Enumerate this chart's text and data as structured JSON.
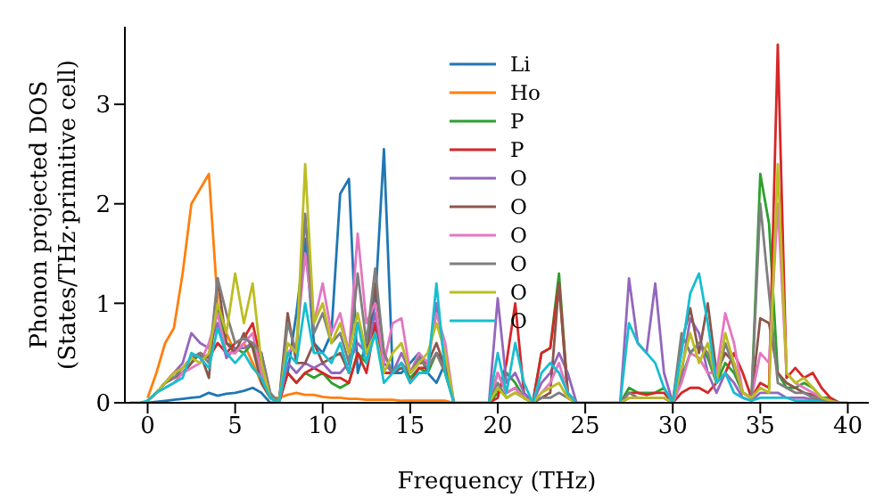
{
  "chart_data": {
    "type": "line",
    "xlabel": "Frequency (THz)",
    "ylabel": "Phonon projected DOS\n(States/THz·primitive cell)",
    "x": [
      -1,
      -0.5,
      0,
      0.5,
      1,
      1.5,
      2,
      2.5,
      3,
      3.5,
      4,
      4.5,
      5,
      5.5,
      6,
      6.5,
      7,
      7.5,
      8,
      8.5,
      9,
      9.5,
      10,
      10.5,
      11,
      11.5,
      12,
      12.5,
      13,
      13.5,
      14,
      14.5,
      15,
      15.5,
      16,
      16.5,
      17,
      17.5,
      18,
      18.5,
      19,
      19.5,
      20,
      20.5,
      21,
      21.5,
      22,
      22.5,
      23,
      23.5,
      24,
      24.5,
      25,
      25.5,
      26,
      26.5,
      27,
      27.5,
      28,
      28.5,
      29,
      29.5,
      30,
      30.5,
      31,
      31.5,
      32,
      32.5,
      33,
      33.5,
      34,
      34.5,
      35,
      35.5,
      36,
      36.5,
      37,
      37.5,
      38,
      38.5,
      39,
      39.5,
      40
    ],
    "series": [
      {
        "name": "Li",
        "color": "#1f77b4",
        "values": [
          null,
          null,
          0,
          0.01,
          0.02,
          0.03,
          0.04,
          0.05,
          0.06,
          0.1,
          0.07,
          0.09,
          0.1,
          0.12,
          0.15,
          0.1,
          0,
          0,
          0.3,
          0.9,
          1.65,
          0.6,
          0.5,
          0.7,
          2.1,
          2.25,
          0.3,
          0.6,
          1.0,
          2.55,
          0.3,
          0.3,
          0.4,
          0.5,
          0.3,
          0.2,
          0.4,
          0,
          null,
          null,
          null,
          null,
          null,
          null,
          null,
          null,
          null,
          null,
          null,
          null,
          null,
          null,
          null,
          null,
          null,
          null,
          null,
          null,
          null,
          null,
          null,
          null,
          null,
          null,
          null,
          null,
          null,
          null,
          null,
          null,
          null,
          null,
          null,
          null,
          null,
          null,
          null,
          null,
          null,
          null,
          null,
          null,
          null
        ]
      },
      {
        "name": "Ho",
        "color": "#ff7f0e",
        "values": [
          null,
          null,
          0.05,
          0.3,
          0.6,
          0.75,
          1.3,
          2.0,
          2.15,
          2.3,
          1.0,
          0.7,
          0.5,
          0.6,
          0.4,
          0.2,
          0.05,
          0.05,
          0.08,
          0.1,
          0.08,
          0.08,
          0.06,
          0.05,
          0.05,
          0.04,
          0.04,
          0.03,
          0.03,
          0.03,
          0.03,
          0.02,
          0.02,
          0.02,
          0.02,
          0.02,
          0.02,
          0,
          null,
          null,
          null,
          null,
          null,
          null,
          null,
          null,
          null,
          null,
          null,
          null,
          null,
          null,
          null,
          null,
          null,
          null,
          null,
          null,
          null,
          null,
          null,
          null,
          null,
          null,
          null,
          null,
          null,
          null,
          null,
          null,
          null,
          null,
          null,
          null,
          null,
          null,
          null,
          null,
          null,
          null,
          null,
          null,
          null
        ]
      },
      {
        "name": "P",
        "color": "#2ca02c",
        "values": [
          null,
          null,
          0.02,
          0.1,
          0.2,
          0.25,
          0.3,
          0.4,
          0.5,
          0.45,
          0.95,
          0.6,
          0.55,
          0.5,
          0.6,
          0.3,
          0.05,
          0,
          0.3,
          0.2,
          0.3,
          0.25,
          0.3,
          0.2,
          0.15,
          0.2,
          0.5,
          0.4,
          0.8,
          0.3,
          0.3,
          0.4,
          0.25,
          0.35,
          0.3,
          0.5,
          0.3,
          0,
          null,
          null,
          null,
          0,
          0.1,
          0.3,
          0.2,
          0.05,
          0,
          0.5,
          0.55,
          1.3,
          0.1,
          0,
          null,
          null,
          null,
          null,
          0,
          0.15,
          0.1,
          0.1,
          0.1,
          0.15,
          0,
          0.25,
          0.5,
          0.6,
          0.45,
          0.2,
          0.4,
          0.3,
          0.1,
          0.05,
          2.3,
          1.8,
          0.3,
          0.15,
          0.15,
          0.2,
          0.15,
          0.05,
          0.05,
          0,
          null
        ]
      },
      {
        "name": "P",
        "color": "#d62728",
        "values": [
          null,
          null,
          null,
          null,
          0.2,
          0.3,
          0.35,
          0.45,
          0.5,
          0.45,
          0.6,
          0.5,
          0.6,
          0.65,
          0.8,
          0.4,
          0.05,
          0,
          0.3,
          0.2,
          0.3,
          0.35,
          0.3,
          0.25,
          0.25,
          0.2,
          0.5,
          0.3,
          0.8,
          0.3,
          0.3,
          0.4,
          0.2,
          0.35,
          0.35,
          0.5,
          0.4,
          0,
          null,
          null,
          null,
          0,
          0.05,
          0.4,
          1.0,
          0.1,
          0,
          0.5,
          0.55,
          1.2,
          0.1,
          0,
          null,
          null,
          null,
          null,
          0,
          0.1,
          0.1,
          0.08,
          0.1,
          0.1,
          0,
          0.1,
          0.15,
          0.15,
          0.1,
          0.2,
          0.3,
          0.5,
          0.3,
          0.05,
          0.2,
          0.15,
          3.6,
          0.25,
          0.35,
          0.25,
          0.3,
          0.15,
          0.05,
          0,
          null
        ]
      },
      {
        "name": "O",
        "color": "#9467bd",
        "values": [
          null,
          null,
          0.02,
          0.1,
          0.2,
          0.3,
          0.4,
          0.7,
          0.6,
          0.55,
          0.8,
          0.45,
          0.55,
          0.55,
          0.6,
          0.5,
          0.1,
          0,
          0.4,
          0.3,
          0.4,
          0.35,
          0.4,
          0.3,
          0.3,
          0.4,
          0.6,
          0.5,
          0.9,
          0.4,
          0.3,
          0.5,
          0.3,
          0.45,
          0.4,
          1.0,
          0.4,
          0,
          null,
          null,
          null,
          0,
          1.05,
          0.2,
          0.3,
          0.1,
          0,
          0.2,
          0.3,
          0.5,
          0.3,
          0,
          null,
          null,
          null,
          null,
          0,
          1.25,
          0.6,
          0.5,
          1.2,
          0.3,
          0,
          0.3,
          0.85,
          0.7,
          0.3,
          0.1,
          0.3,
          0.2,
          0.05,
          0.02,
          0.1,
          0.1,
          0.1,
          0.05,
          0.05,
          0.05,
          0.03,
          0.02,
          0,
          null,
          null
        ]
      },
      {
        "name": "O",
        "color": "#8c564b",
        "values": [
          null,
          null,
          0.02,
          0.1,
          0.2,
          0.25,
          0.3,
          0.4,
          0.5,
          0.25,
          1.25,
          0.6,
          0.5,
          0.7,
          0.55,
          0.2,
          0.05,
          0,
          0.9,
          0.4,
          0.4,
          0.6,
          0.4,
          0.45,
          0.5,
          0.3,
          0.8,
          0.5,
          1.2,
          0.5,
          0.3,
          0.35,
          0.3,
          0.4,
          0.4,
          0.6,
          0.35,
          0,
          null,
          null,
          null,
          0,
          0.3,
          0.1,
          0.15,
          0.05,
          0,
          0.05,
          0.1,
          1.2,
          0.05,
          0,
          null,
          null,
          null,
          null,
          0,
          0.05,
          0.05,
          0.05,
          0.05,
          0.05,
          0,
          0.6,
          0.95,
          0.5,
          1.0,
          0.3,
          0.5,
          0.4,
          0.1,
          0.05,
          0.85,
          0.8,
          0.3,
          0.2,
          0.15,
          0.1,
          0.08,
          0.05,
          0.02,
          0,
          null
        ]
      },
      {
        "name": "O",
        "color": "#e377c2",
        "values": [
          null,
          null,
          null,
          null,
          0.15,
          0.2,
          0.3,
          0.35,
          0.4,
          0.6,
          0.9,
          0.5,
          0.5,
          0.6,
          0.7,
          0.3,
          0.05,
          0,
          0.5,
          0.6,
          1.5,
          0.8,
          1.2,
          0.7,
          0.9,
          0.5,
          1.7,
          0.8,
          1.0,
          0.4,
          0.8,
          0.85,
          0.3,
          0.5,
          0.4,
          0.9,
          0.6,
          0,
          null,
          null,
          null,
          0,
          0.3,
          0.1,
          0.15,
          0.05,
          0,
          0.1,
          0.2,
          0.4,
          0.1,
          0,
          null,
          null,
          null,
          null,
          0,
          0.05,
          0.05,
          0.05,
          0.05,
          0.05,
          0,
          0.2,
          0.5,
          0.45,
          0.3,
          0.3,
          0.9,
          0.6,
          0.1,
          0.05,
          0.5,
          0.4,
          2.0,
          0.3,
          0.2,
          0.15,
          0.1,
          0.05,
          0.02,
          0,
          null
        ]
      },
      {
        "name": "O",
        "color": "#7f7f7f",
        "values": [
          null,
          null,
          0.02,
          0.1,
          0.2,
          0.25,
          0.35,
          0.45,
          0.5,
          0.4,
          1.25,
          0.9,
          0.6,
          0.65,
          0.6,
          0.5,
          0.1,
          0,
          0.8,
          0.5,
          1.9,
          0.7,
          0.9,
          0.6,
          0.7,
          0.4,
          1.3,
          0.6,
          1.35,
          0.5,
          0.3,
          0.4,
          0.3,
          0.45,
          0.35,
          0.5,
          0.3,
          0,
          null,
          null,
          null,
          0,
          0.2,
          0.05,
          0.1,
          0.05,
          0,
          0.05,
          0.05,
          0.1,
          0.05,
          0,
          null,
          null,
          null,
          null,
          0,
          0.1,
          0.05,
          0.05,
          0.05,
          0.05,
          0,
          0.7,
          0.5,
          0.6,
          0.5,
          0.2,
          0.6,
          0.35,
          0.1,
          0.05,
          2.0,
          1.1,
          0.2,
          0.15,
          0.1,
          0.1,
          0.05,
          0.03,
          0.02,
          0,
          null
        ]
      },
      {
        "name": "O",
        "color": "#bcbd22",
        "values": [
          null,
          null,
          0.02,
          0.1,
          0.2,
          0.3,
          0.35,
          0.45,
          0.4,
          0.5,
          1.0,
          0.7,
          1.3,
          0.8,
          1.2,
          0.4,
          0.05,
          0,
          0.6,
          0.5,
          2.4,
          0.8,
          1.0,
          0.6,
          0.8,
          0.5,
          0.9,
          0.5,
          0.7,
          0.3,
          0.5,
          0.6,
          0.3,
          0.4,
          0.5,
          0.8,
          0.5,
          0,
          null,
          null,
          null,
          0,
          0.15,
          0.05,
          0.1,
          0.05,
          0,
          0.1,
          0.15,
          0.2,
          0.05,
          0,
          null,
          null,
          null,
          null,
          0,
          0.05,
          0.05,
          0.05,
          0.05,
          0.05,
          0,
          0.35,
          0.7,
          0.4,
          0.6,
          0.2,
          0.7,
          0.4,
          0.1,
          0.05,
          0.15,
          0.1,
          2.4,
          0.3,
          0.2,
          0.25,
          0.15,
          0.05,
          0.02,
          0,
          null
        ]
      },
      {
        "name": "O",
        "color": "#17becf",
        "values": [
          0,
          0,
          0.02,
          0.1,
          0.15,
          0.2,
          0.25,
          0.5,
          0.45,
          0.35,
          0.75,
          0.5,
          0.4,
          0.5,
          0.35,
          0.25,
          0.05,
          0,
          0.5,
          0.4,
          1.0,
          0.5,
          0.5,
          0.4,
          0.6,
          0.3,
          0.8,
          0.4,
          0.7,
          0.2,
          0.3,
          0.4,
          0.2,
          0.3,
          0.3,
          1.2,
          0.3,
          0,
          0,
          0,
          0,
          0,
          0.5,
          0.1,
          0.6,
          0.2,
          0,
          0.3,
          0.4,
          0.3,
          0.1,
          0,
          0,
          0,
          0,
          0,
          0,
          0.8,
          0.6,
          0.5,
          0.4,
          0.15,
          0,
          0.5,
          1.1,
          1.3,
          0.8,
          0.2,
          0.3,
          0.1,
          0.05,
          0.02,
          0.05,
          0.05,
          0.05,
          0.05,
          0.02,
          0.02,
          0.02,
          0.01,
          0,
          0,
          0
        ]
      }
    ],
    "xlim": [
      -1.3,
      41.2
    ],
    "ylim": [
      0,
      3.78
    ],
    "xticks": [
      0,
      5,
      10,
      15,
      20,
      25,
      30,
      35,
      40
    ],
    "yticks": [
      0,
      1,
      2,
      3
    ],
    "legend": "top",
    "grid": false,
    "marker": "none",
    "line_style": "solid"
  }
}
